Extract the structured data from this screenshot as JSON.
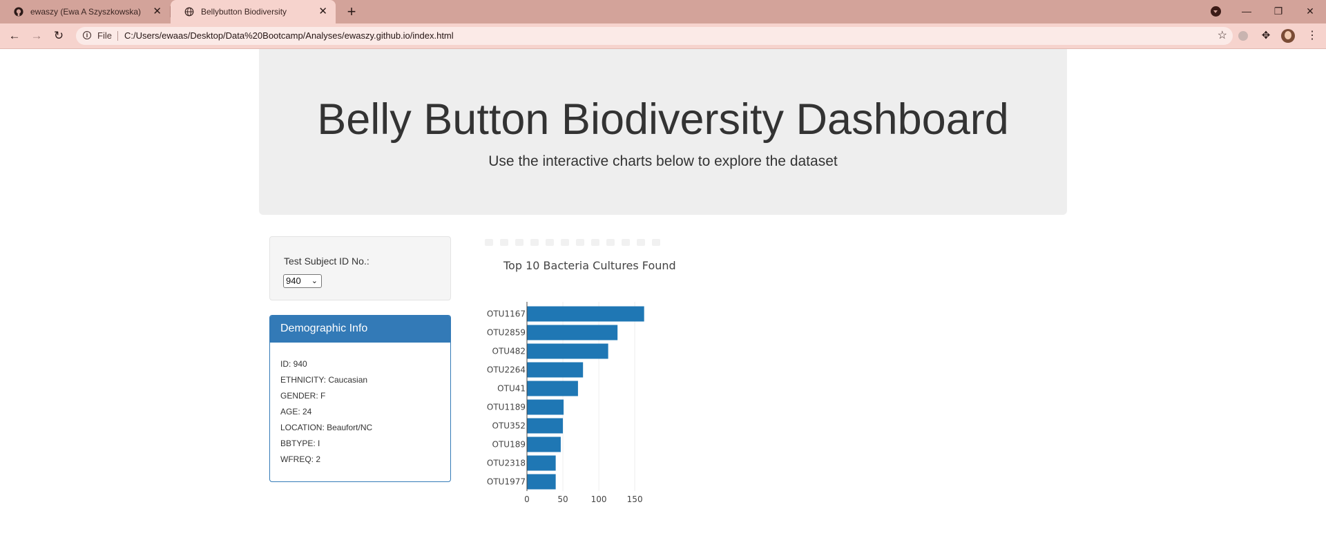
{
  "browser": {
    "tabs": [
      {
        "title": "ewaszy (Ewa A Szyszkowska)",
        "icon": "github-icon"
      },
      {
        "title": "Bellybutton Biodiversity",
        "icon": "globe-icon"
      }
    ],
    "new_tab_symbol": "+",
    "address": {
      "scheme_label": "File",
      "url": "C:/Users/ewaas/Desktop/Data%20Bootcamp/Analyses/ewaszy.github.io/index.html"
    },
    "theme_colors": {
      "tabbar": "#d3a39a",
      "toolbar": "#f6d3cd"
    }
  },
  "page": {
    "title": "Belly Button Biodiversity Dashboard",
    "subtitle": "Use the interactive charts below to explore the dataset",
    "selector": {
      "label": "Test Subject ID No.:",
      "selected": "940"
    },
    "demographics": {
      "heading": "Demographic Info",
      "rows": [
        "ID: 940",
        "ETHNICITY: Caucasian",
        "GENDER: F",
        "AGE: 24",
        "LOCATION: Beaufort/NC",
        "BBTYPE: I",
        "WFREQ: 2"
      ]
    },
    "colors": {
      "accent": "#337ab7",
      "bar": "#1f77b4"
    }
  },
  "chart_data": {
    "type": "bar",
    "orientation": "horizontal",
    "title": "Top 10 Bacteria Cultures Found",
    "categories": [
      "OTU1167",
      "OTU2859",
      "OTU482",
      "OTU2264",
      "OTU41",
      "OTU1189",
      "OTU352",
      "OTU189",
      "OTU2318",
      "OTU1977"
    ],
    "values": [
      163,
      126,
      113,
      78,
      71,
      51,
      50,
      47,
      40,
      40
    ],
    "xticks": [
      0,
      50,
      100,
      150
    ],
    "xlim": [
      0,
      171
    ],
    "grid": true
  }
}
